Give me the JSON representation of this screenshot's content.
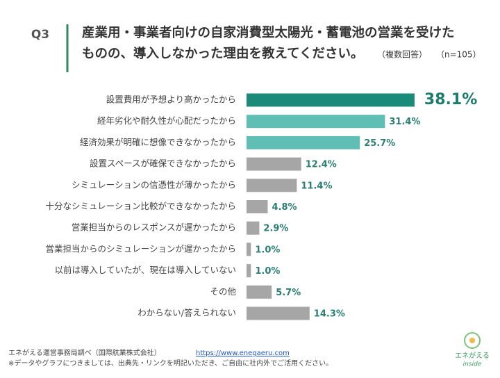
{
  "question": "Q3",
  "chart_data": {
    "type": "hbar",
    "title": [
      "産業用・事業者向けの自家消費型太陽光・蓄電池の営業を受けた",
      "ものの、導入しなかった理由を教えてください。"
    ],
    "subtitle": [
      "（複数回答）",
      "（n=105）"
    ],
    "categories": [
      "設置費用が予想より高かったから",
      "経年劣化や耐久性が心配だったから",
      "経済効果が明確に想像できなかったから",
      "設置スペースが確保できなかったから",
      "シミュレーションの信憑性が薄かったから",
      "十分なシミュレーション比較ができなかったから",
      "営業担当からのレスポンスが遅かったから",
      "営業担当からのシミュレーションが遅かったから",
      "以前は導入していたが、現在は導入していない",
      "その他",
      "わからない/答えられない"
    ],
    "values": [
      38.1,
      31.4,
      25.7,
      12.4,
      11.4,
      4.8,
      2.9,
      1.0,
      1.0,
      5.7,
      14.3
    ],
    "value_labels": [
      "38.1%",
      "31.4%",
      "25.7%",
      "12.4%",
      "11.4%",
      "4.8%",
      "2.9%",
      "1.0%",
      "1.0%",
      "5.7%",
      "14.3%"
    ],
    "colors": [
      "#1b8a78",
      "#5fbfb4",
      "#5fbfb4",
      "#a6a6a6",
      "#a6a6a6",
      "#a6a6a6",
      "#a6a6a6",
      "#a6a6a6",
      "#a6a6a6",
      "#a6a6a6",
      "#a6a6a6"
    ]
  },
  "footer": {
    "source": "エネがえる運営事務局調べ（国際航業株式会社）",
    "link": "https://www.enegaeru.com",
    "note": "※データやグラフにつきましては、出典先・リンクを明記いただき、ご自由に社内外でご活用ください。"
  },
  "logo": {
    "name": "エネがえる",
    "tag": "inside"
  }
}
